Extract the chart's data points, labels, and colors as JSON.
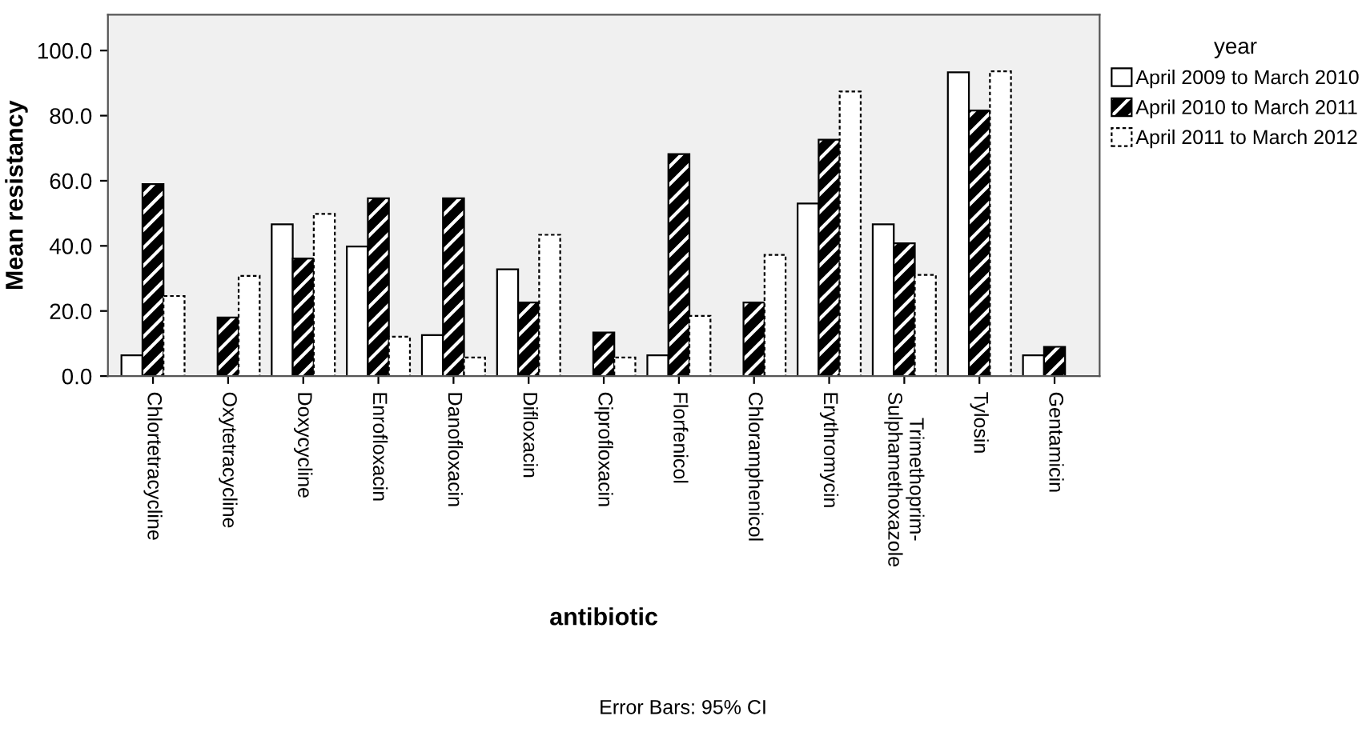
{
  "chart_data": {
    "type": "bar",
    "xlabel": "antibiotic",
    "ylabel": "Mean resistancy",
    "legend_title": "year",
    "categories": [
      "Chlortetracycline",
      "Oxytetracycline",
      "Doxycycline",
      "Enrofloxacin",
      "Danofloxacin",
      "Difloxacin",
      "Ciprofloxacin",
      "Florfenicol",
      "Chloramphenicol",
      "Erythromycin",
      "Trimethoprim-\nSulphamethoxazole",
      "Tylosin",
      "Gentamicin"
    ],
    "series": [
      {
        "name": "April 2009 to March 2010",
        "color": "#ffffff",
        "values": [
          6.4,
          0,
          46.6,
          39.8,
          12.6,
          32.8,
          0,
          6.4,
          0,
          53.0,
          46.6,
          93.3,
          6.4
        ]
      },
      {
        "name": "April 2010 to March 2011",
        "color": "#000000",
        "values": [
          59.0,
          18.0,
          36.1,
          54.6,
          54.6,
          22.6,
          13.4,
          68.2,
          22.6,
          72.6,
          40.8,
          81.6,
          9.0
        ]
      },
      {
        "name": "April 2011 to March 2012",
        "color": "#ffffff",
        "values": [
          24.6,
          30.8,
          49.8,
          12.1,
          5.7,
          43.4,
          5.7,
          18.5,
          37.2,
          87.4,
          31.1,
          93.6,
          0
        ]
      }
    ],
    "ylim": [
      0,
      111
    ],
    "yticks": [
      {
        "value": 0,
        "label": "0.0"
      },
      {
        "value": 20,
        "label": "20.0"
      },
      {
        "value": 40,
        "label": "40.0"
      },
      {
        "value": 60,
        "label": "60.0"
      },
      {
        "value": 80,
        "label": "80.0"
      },
      {
        "value": 100,
        "label": "100.0"
      }
    ],
    "grid": false,
    "legend": "right",
    "annotations": [
      "Error Bars: 95% CI"
    ]
  }
}
